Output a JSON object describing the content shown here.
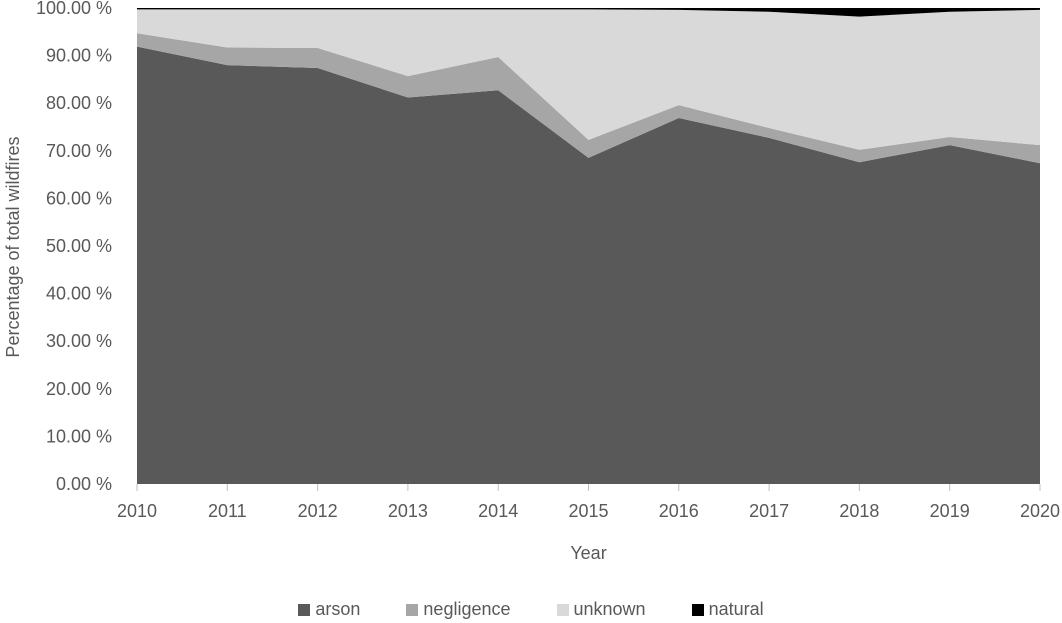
{
  "chart_data": {
    "type": "area",
    "stacked": true,
    "title": "",
    "xlabel": "Year",
    "ylabel": "Percentage of total wildfires",
    "x": [
      2010,
      2011,
      2012,
      2013,
      2014,
      2015,
      2016,
      2017,
      2018,
      2019,
      2020
    ],
    "series": [
      {
        "name": "arson",
        "color": "#595959",
        "values": [
          91.9,
          88.0,
          87.4,
          81.2,
          82.7,
          68.5,
          76.9,
          72.7,
          67.6,
          71.2,
          67.4
        ]
      },
      {
        "name": "negligence",
        "color": "#a6a6a6",
        "values": [
          2.8,
          3.7,
          4.2,
          4.5,
          7.0,
          3.8,
          2.7,
          2.1,
          2.6,
          1.7,
          3.8
        ]
      },
      {
        "name": "unknown",
        "color": "#d9d9d9",
        "values": [
          5.0,
          8.0,
          8.1,
          14.0,
          10.0,
          27.4,
          20.0,
          24.4,
          28.0,
          26.3,
          28.4
        ]
      },
      {
        "name": "natural",
        "color": "#000000",
        "values": [
          0.3,
          0.3,
          0.3,
          0.3,
          0.3,
          0.3,
          0.4,
          0.8,
          1.8,
          0.8,
          0.4
        ]
      }
    ],
    "ylim": [
      0,
      100
    ],
    "ytick_values": [
      0,
      10,
      20,
      30,
      40,
      50,
      60,
      70,
      80,
      90,
      100
    ],
    "ytick_labels": [
      "0.00 %",
      "10.00 %",
      "20.00 %",
      "30.00 %",
      "40.00 %",
      "50.00 %",
      "60.00 %",
      "70.00 %",
      "80.00 %",
      "90.00 %",
      "100.00 %"
    ],
    "xtick_labels": [
      "2010",
      "2011",
      "2012",
      "2013",
      "2014",
      "2015",
      "2016",
      "2017",
      "2018",
      "2019",
      "2020"
    ],
    "legend_position": "bottom",
    "grid": false
  },
  "colors": {
    "text": "#595959",
    "tick": "#bfbfbf",
    "background": "#ffffff"
  }
}
